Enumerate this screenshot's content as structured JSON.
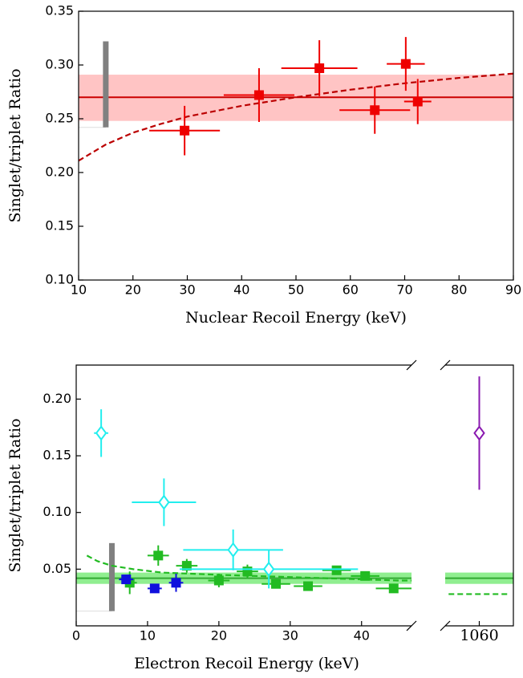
{
  "chart_data": [
    {
      "type": "scatter",
      "xlabel": "Nuclear Recoil Energy (keV)",
      "ylabel": "Singlet/triplet Ratio",
      "xlim": [
        10,
        90
      ],
      "ylim": [
        0.1,
        0.35
      ],
      "xticks": [
        10,
        20,
        30,
        40,
        50,
        60,
        70,
        80,
        90
      ],
      "yticks": [
        {
          "value": 0.1,
          "label": "0.10"
        },
        0.15,
        {
          "value": 0.2,
          "label": "0.20"
        },
        0.25,
        {
          "value": 0.3,
          "label": "0.30"
        },
        0.35
      ],
      "series": [
        {
          "style": "mean-band",
          "color": "#cc0000",
          "band_color": "#ffc4c4",
          "value": 0.27,
          "band": [
            0.248,
            0.291
          ]
        },
        {
          "style": "threshold",
          "color": "#808080",
          "x": 15,
          "range": [
            0.242,
            0.322
          ]
        },
        {
          "style": "dashed",
          "color": "#bb0000",
          "x": [
            10,
            15,
            20,
            25,
            30,
            40,
            50,
            60,
            70,
            80,
            90
          ],
          "values": [
            0.211,
            0.226,
            0.237,
            0.245,
            0.252,
            0.262,
            0.27,
            0.277,
            0.283,
            0.288,
            0.292
          ]
        },
        {
          "style": "square",
          "color": "#ee0000",
          "x": [
            29.5,
            43.2,
            54.3,
            64.5,
            70.2,
            72.4
          ],
          "values": [
            0.239,
            0.272,
            0.297,
            0.258,
            0.301,
            0.266
          ],
          "xerr": [
            6.5,
            6.5,
            7,
            6.5,
            3.5,
            2.5
          ],
          "yerr": [
            0.023,
            0.025,
            0.026,
            0.022,
            0.025,
            0.021
          ]
        }
      ]
    },
    {
      "type": "scatter",
      "xlabel": "Electron Recoil Energy (keV)",
      "ylabel": "Singlet/triplet Ratio",
      "xlim": [
        0,
        47
      ],
      "x2lim": [
        1055,
        1065
      ],
      "ylim": [
        0,
        0.23
      ],
      "xticks": [
        0,
        10,
        20,
        30,
        40
      ],
      "x2ticks": [
        1060
      ],
      "yticks": [
        0.05,
        {
          "value": 0.1,
          "label": "0.10"
        },
        0.15,
        {
          "value": 0.2,
          "label": "0.20"
        }
      ],
      "series": [
        {
          "style": "mean-band",
          "color": "#33aa33",
          "band_color": "#90ee90",
          "value": 0.042,
          "band": [
            0.037,
            0.047
          ]
        },
        {
          "style": "threshold",
          "color": "#808080",
          "x": 5,
          "range": [
            0.013,
            0.073
          ]
        },
        {
          "style": "dashed",
          "color": "#22bb22",
          "x": [
            1.5,
            3,
            5,
            8,
            12,
            16,
            20,
            25,
            30,
            35,
            40,
            45,
            47
          ],
          "values": [
            0.062,
            0.057,
            0.053,
            0.05,
            0.047,
            0.046,
            0.045,
            0.044,
            0.043,
            0.042,
            0.041,
            0.04,
            0.04
          ]
        },
        {
          "style": "dashed",
          "color": "#22bb22",
          "x": [
            1055.5,
            1064.5
          ],
          "values": [
            0.028,
            0.028
          ]
        },
        {
          "style": "square",
          "color": "#22bb22",
          "x": [
            7.5,
            11.5,
            15.5,
            20,
            24,
            28,
            32.5,
            36.5,
            40.5,
            44.5
          ],
          "values": [
            0.038,
            0.062,
            0.053,
            0.04,
            0.048,
            0.037,
            0.035,
            0.049,
            0.044,
            0.033
          ],
          "xerr": [
            1,
            1.5,
            1.5,
            1.5,
            1.5,
            2,
            2,
            2,
            2,
            2.5
          ],
          "yerr": [
            0.01,
            0.009,
            0.006,
            0.006,
            0.006,
            0.004,
            0.003,
            0.004,
            0.004,
            0.003
          ]
        },
        {
          "style": "square",
          "color": "#1010dd",
          "x": [
            7,
            11,
            14
          ],
          "values": [
            0.041,
            0.033,
            0.038
          ],
          "xerr": [
            1,
            1,
            1
          ],
          "yerr": [
            0.004,
            0.004,
            0.008
          ]
        },
        {
          "style": "open-diamond",
          "color": "#22eeee",
          "x": [
            3.5,
            12.3,
            22,
            27
          ],
          "values": [
            0.17,
            0.109,
            0.067,
            0.05
          ],
          "xerr": [
            1,
            4.5,
            7,
            12.5
          ],
          "yerr": [
            0.021,
            0.021,
            0.018,
            0.017
          ]
        },
        {
          "style": "open-diamond",
          "color": "#8a1ab0",
          "x": [
            1060
          ],
          "values": [
            0.17
          ],
          "xerr": [
            0
          ],
          "yerr": [
            0.05
          ]
        }
      ]
    }
  ]
}
